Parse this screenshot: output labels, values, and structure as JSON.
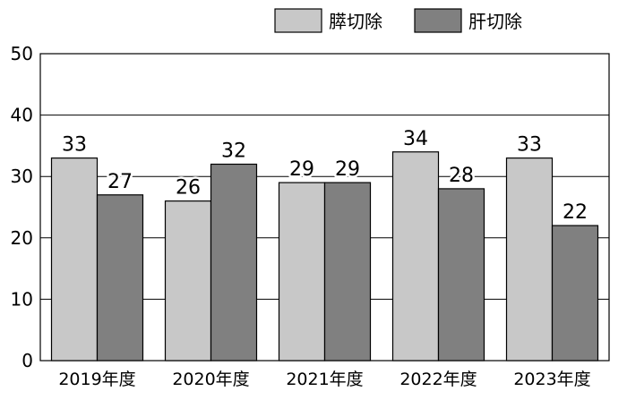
{
  "chart_data": {
    "type": "bar",
    "categories": [
      "2019年度",
      "2020年度",
      "2021年度",
      "2022年度",
      "2023年度"
    ],
    "series": [
      {
        "name": "膵切除",
        "values": [
          33,
          26,
          29,
          34,
          33
        ],
        "color": "#c8c8c8"
      },
      {
        "name": "肝切除",
        "values": [
          27,
          32,
          29,
          28,
          22
        ],
        "color": "#808080"
      }
    ],
    "ylim": [
      0,
      50
    ],
    "yticks": [
      0,
      10,
      20,
      30,
      40,
      50
    ],
    "grid": true,
    "legend_position": "top-right"
  }
}
